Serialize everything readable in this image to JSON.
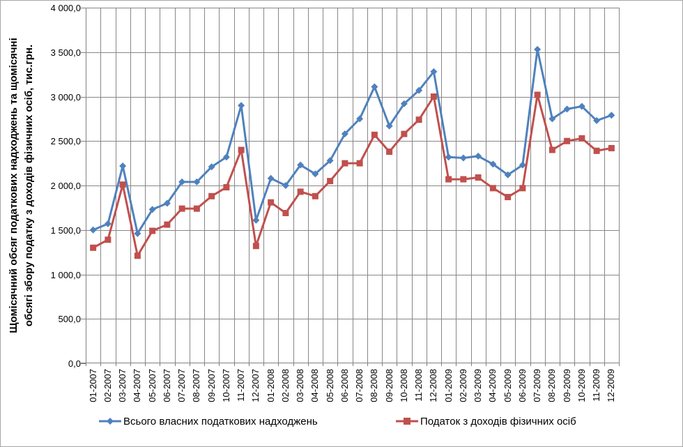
{
  "chart_data": {
    "type": "line",
    "y_axis_title_line1": "Щомісячний обсяг податкових надходжень та щомісячні",
    "y_axis_title_line2": "обсягі збору податку з доходів фізичних осіб, тис.грн.",
    "categories": [
      "01-2007",
      "02-2007",
      "03-2007",
      "04-2007",
      "05-2007",
      "06-2007",
      "07-2007",
      "08-2007",
      "09-2007",
      "10-2007",
      "11-2007",
      "12-2007",
      "01-2008",
      "02-2008",
      "03-2008",
      "04-2008",
      "05-2008",
      "06-2008",
      "07-2008",
      "08-2008",
      "09-2008",
      "10-2008",
      "11-2008",
      "12-2008",
      "01-2009",
      "02-2009",
      "03-2009",
      "04-2009",
      "05-2009",
      "06-2009",
      "07-2009",
      "08-2009",
      "09-2009",
      "10-2009",
      "11-2009",
      "12-2009"
    ],
    "series": [
      {
        "name": "Всього власних податкових надходжень",
        "color": "#4F81BD",
        "marker": "diamond",
        "values": [
          1500,
          1570,
          2220,
          1460,
          1730,
          1800,
          2040,
          2040,
          2210,
          2320,
          2900,
          1610,
          2080,
          2000,
          2230,
          2130,
          2280,
          2580,
          2750,
          3110,
          2670,
          2920,
          3070,
          3280,
          2320,
          2310,
          2330,
          2240,
          2120,
          2230,
          3530,
          2750,
          2860,
          2890,
          2730,
          2790
        ]
      },
      {
        "name": "Податок з доходів фізичних осіб",
        "color": "#C0504D",
        "marker": "square",
        "values": [
          1300,
          1390,
          2010,
          1210,
          1490,
          1560,
          1740,
          1740,
          1880,
          1980,
          2400,
          1320,
          1810,
          1690,
          1930,
          1880,
          2050,
          2250,
          2250,
          2570,
          2380,
          2580,
          2740,
          3000,
          2070,
          2070,
          2090,
          1970,
          1870,
          1970,
          3020,
          2400,
          2500,
          2530,
          2390,
          2420
        ]
      }
    ],
    "ylim": [
      0,
      4000
    ],
    "y_tick_step": 500,
    "y_tick_labels": [
      "0,0",
      "500,0",
      "1 000,0",
      "1 500,0",
      "2 000,0",
      "2 500,0",
      "3 000,0",
      "3 500,0",
      "4 000,0"
    ],
    "grid": true,
    "legend_position": "bottom",
    "colors": {
      "gridline": "#878787",
      "axis": "#808080",
      "text": "#000000",
      "frame_border": "#a6a6a6"
    }
  }
}
